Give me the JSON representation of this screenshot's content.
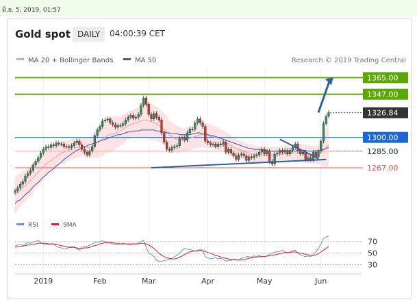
{
  "timestamp": "มิ.ย. 5, 2019, 01:57",
  "header": {
    "title": "Gold spot",
    "timeframe": "DAILY",
    "time": "04:00:39 CET"
  },
  "legend": {
    "ma20": "MA 20 + Bollinger Bands",
    "ma50": "MA 50",
    "credit": "Research © 2019 Trading Central"
  },
  "colors": {
    "ma20": "#f4a0a0",
    "ma50": "#3b5a9e",
    "bands": "#fde3e3",
    "up": "#2e8b57",
    "down": "#c0392b",
    "green_level": "#5aa800",
    "blue_level": "#1a66d9",
    "red_level": "#e05555",
    "arrow": "#2f5f9e",
    "rsi": "#6f8fe0",
    "rsi_ma": "#e02020"
  },
  "chart_data": [
    {
      "type": "candlestick",
      "x_labels": [
        "2019",
        "Feb",
        "Mar",
        "Apr",
        "May",
        "Jun"
      ],
      "ylim": [
        1226,
        1375
      ],
      "price_levels": [
        {
          "label": "1365.00",
          "value": 1365.0,
          "style": "green"
        },
        {
          "label": "1347.00",
          "value": 1347.0,
          "style": "green"
        },
        {
          "label": "1326.84",
          "value": 1326.84,
          "style": "dark"
        },
        {
          "label": "1300.00",
          "value": 1300.0,
          "style": "blue"
        },
        {
          "label": "1285.00",
          "value": 1285.0,
          "style": "light"
        },
        {
          "label": "1267.00",
          "value": 1267.0,
          "style": "light-red"
        }
      ],
      "close": [
        1242,
        1245,
        1249,
        1252,
        1258,
        1261,
        1264,
        1270,
        1274,
        1278,
        1283,
        1287,
        1290,
        1289,
        1292,
        1291,
        1294,
        1293,
        1293,
        1290,
        1290,
        1289,
        1291,
        1294,
        1296,
        1292,
        1287,
        1284,
        1281,
        1285,
        1290,
        1302,
        1308,
        1312,
        1318,
        1319,
        1320,
        1316,
        1314,
        1311,
        1313,
        1313,
        1315,
        1319,
        1322,
        1324,
        1321,
        1322,
        1325,
        1335,
        1343,
        1336,
        1325,
        1320,
        1326,
        1322,
        1319,
        1305,
        1295,
        1287,
        1286,
        1289,
        1290,
        1291,
        1299,
        1300,
        1297,
        1305,
        1309,
        1309,
        1316,
        1320,
        1316,
        1312,
        1296,
        1294,
        1292,
        1293,
        1290,
        1293,
        1292,
        1295,
        1284,
        1287,
        1283,
        1280,
        1276,
        1281,
        1282,
        1280,
        1275,
        1279,
        1278,
        1280,
        1281,
        1284,
        1287,
        1282,
        1285,
        1274,
        1271,
        1282,
        1283,
        1286,
        1284,
        1286,
        1282,
        1286,
        1289,
        1293,
        1285,
        1282,
        1284,
        1276,
        1278,
        1276,
        1284,
        1279,
        1285,
        1296,
        1315,
        1323,
        1327
      ],
      "ma50": [
        1228,
        1231,
        1232,
        1235,
        1238,
        1240,
        1243,
        1246,
        1249,
        1251,
        1254,
        1257,
        1259,
        1262,
        1264,
        1266,
        1269,
        1271,
        1273,
        1276,
        1278,
        1280,
        1282,
        1284,
        1286,
        1287,
        1289,
        1290,
        1291,
        1292,
        1293,
        1294,
        1295,
        1296,
        1297,
        1298,
        1299,
        1300,
        1301,
        1302,
        1303,
        1303,
        1304,
        1305,
        1306,
        1306,
        1307,
        1307,
        1307,
        1308,
        1308,
        1308,
        1308,
        1308,
        1308,
        1307,
        1307,
        1306,
        1306,
        1305,
        1305,
        1304,
        1304,
        1304,
        1303,
        1303,
        1303,
        1303,
        1303,
        1304,
        1304,
        1305,
        1305,
        1304,
        1304,
        1303,
        1302,
        1302,
        1301,
        1300,
        1299,
        1298,
        1297,
        1296,
        1295,
        1294,
        1293,
        1292,
        1291,
        1290,
        1289,
        1288,
        1288,
        1287,
        1287,
        1287,
        1287,
        1286,
        1286,
        1285,
        1285,
        1285,
        1285,
        1285,
        1285,
        1285,
        1285,
        1285,
        1285,
        1285,
        1286,
        1286,
        1286,
        1286,
        1285,
        1285,
        1285,
        1285,
        1286,
        1286,
        1287,
        1288,
        1289
      ],
      "ma20": [
        1237,
        1240,
        1243,
        1245,
        1248,
        1250,
        1253,
        1256,
        1259,
        1262,
        1265,
        1268,
        1271,
        1273,
        1275,
        1277,
        1279,
        1281,
        1283,
        1284,
        1285,
        1286,
        1287,
        1288,
        1289,
        1289,
        1289,
        1289,
        1289,
        1289,
        1290,
        1292,
        1294,
        1296,
        1298,
        1300,
        1302,
        1303,
        1304,
        1305,
        1306,
        1307,
        1309,
        1311,
        1313,
        1314,
        1315,
        1316,
        1317,
        1318,
        1319,
        1319,
        1318,
        1317,
        1316,
        1315,
        1313,
        1311,
        1309,
        1306,
        1303,
        1301,
        1299,
        1298,
        1297,
        1297,
        1297,
        1298,
        1299,
        1300,
        1301,
        1302,
        1303,
        1303,
        1302,
        1302,
        1301,
        1301,
        1300,
        1299,
        1297,
        1296,
        1294,
        1293,
        1291,
        1289,
        1288,
        1287,
        1286,
        1285,
        1284,
        1283,
        1282,
        1282,
        1281,
        1281,
        1281,
        1281,
        1281,
        1281,
        1281,
        1281,
        1281,
        1281,
        1282,
        1282,
        1282,
        1282,
        1283,
        1283,
        1283,
        1283,
        1283,
        1282,
        1282,
        1281,
        1281,
        1281,
        1282,
        1283,
        1286,
        1289,
        1292
      ],
      "bb_width": [
        20,
        19,
        18,
        18,
        17,
        16,
        16,
        16,
        15,
        15,
        14,
        14,
        14,
        13,
        13,
        13,
        12,
        12,
        12,
        12,
        11,
        11,
        11,
        11,
        11,
        10,
        10,
        10,
        10,
        11,
        12,
        14,
        16,
        17,
        18,
        18,
        19,
        19,
        19,
        18,
        17,
        16,
        16,
        15,
        15,
        15,
        15,
        16,
        17,
        19,
        20,
        20,
        20,
        20,
        19,
        19,
        18,
        18,
        17,
        17,
        16,
        16,
        15,
        15,
        14,
        13,
        13,
        13,
        13,
        13,
        13,
        13,
        14,
        14,
        13,
        13,
        13,
        12,
        12,
        12,
        12,
        12,
        12,
        11,
        11,
        11,
        11,
        10,
        10,
        10,
        10,
        10,
        10,
        10,
        9,
        9,
        9,
        9,
        9,
        9,
        9,
        9,
        9,
        9,
        9,
        9,
        9,
        9,
        9,
        10,
        10,
        10,
        10,
        10,
        10,
        10,
        10,
        10,
        11,
        14,
        18,
        21,
        23
      ],
      "trendlines": [
        {
          "name": "support",
          "from": [
            1267,
            53
          ],
          "to": [
            1276,
            121
          ]
        },
        {
          "name": "resistance",
          "from": [
            1298,
            103
          ],
          "to": [
            1277,
            118
          ]
        }
      ],
      "projection_arrow": {
        "from": [
          1327,
          118
        ],
        "to": [
          1365,
          123
        ]
      }
    },
    {
      "type": "line",
      "title": "RSI",
      "series": [
        {
          "name": "RSI",
          "values": [
            62,
            64,
            65,
            63,
            66,
            68,
            67,
            69,
            70,
            72,
            68,
            66,
            65,
            64,
            66,
            65,
            62,
            60,
            59,
            57,
            58,
            60,
            62,
            61,
            57,
            55,
            60,
            62,
            61,
            64,
            66,
            68,
            69,
            70,
            71,
            70,
            69,
            68,
            66,
            65,
            64,
            66,
            67,
            66,
            65,
            64,
            66,
            65,
            68,
            70,
            72,
            60,
            50,
            48,
            44,
            38,
            36,
            36,
            37,
            38,
            39,
            41,
            44,
            46,
            50,
            55,
            58,
            57,
            56,
            55,
            53,
            55,
            56,
            55,
            44,
            42,
            40,
            41,
            42,
            40,
            41,
            39,
            36,
            38,
            37,
            40,
            39,
            38,
            41,
            42,
            44,
            44,
            43,
            45,
            44,
            46,
            44,
            44,
            45,
            48,
            50,
            52,
            52,
            53,
            55,
            52,
            50,
            52,
            54,
            55,
            50,
            47,
            45,
            44,
            45,
            44,
            48,
            52,
            58,
            66,
            75,
            78,
            79
          ]
        },
        {
          "name": "9MA",
          "values": [
            60,
            61,
            62,
            62,
            63,
            64,
            64,
            65,
            66,
            67,
            67,
            67,
            67,
            66,
            66,
            66,
            65,
            64,
            63,
            62,
            61,
            60,
            60,
            60,
            59,
            58,
            58,
            59,
            59,
            60,
            62,
            63,
            64,
            66,
            67,
            68,
            68,
            68,
            68,
            67,
            67,
            66,
            66,
            66,
            66,
            66,
            66,
            66,
            66,
            67,
            67,
            66,
            64,
            61,
            58,
            54,
            50,
            46,
            44,
            42,
            41,
            40,
            40,
            41,
            43,
            45,
            48,
            50,
            52,
            53,
            54,
            54,
            55,
            54,
            53,
            51,
            50,
            48,
            46,
            45,
            43,
            42,
            41,
            40,
            39,
            39,
            38,
            38,
            38,
            39,
            40,
            41,
            42,
            43,
            43,
            44,
            44,
            44,
            45,
            45,
            46,
            47,
            48,
            49,
            50,
            51,
            51,
            51,
            52,
            52,
            51,
            50,
            49,
            48,
            47,
            46,
            46,
            47,
            49,
            52,
            55,
            58,
            62
          ]
        }
      ],
      "yticks": [
        "70",
        "50",
        "30"
      ],
      "ylim": [
        20,
        85
      ]
    }
  ]
}
